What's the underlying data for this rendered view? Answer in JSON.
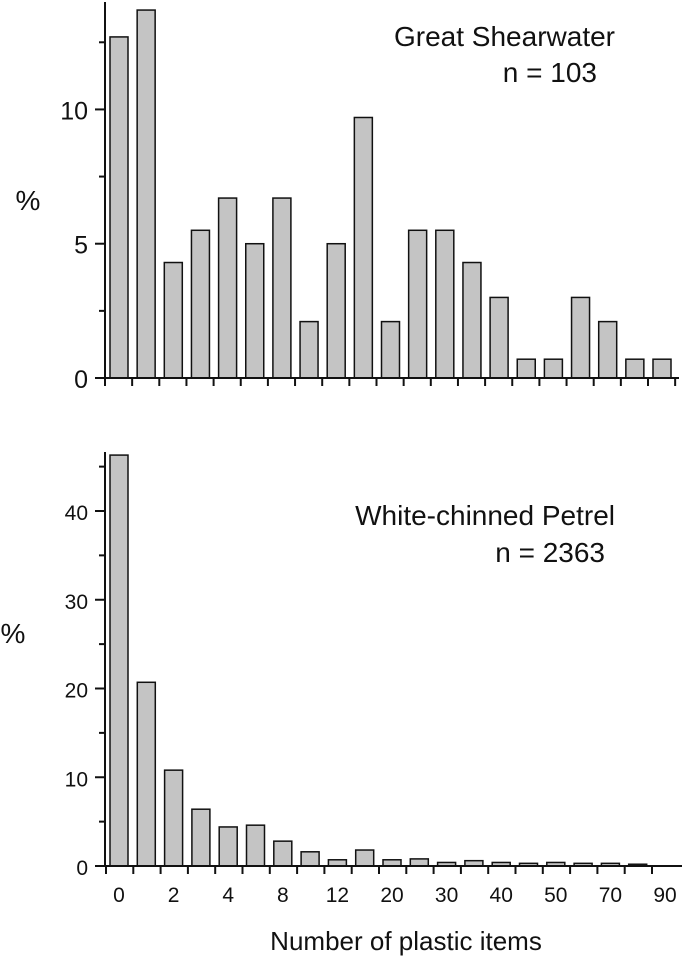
{
  "chart_data": [
    {
      "type": "bar",
      "title": "Great Shearwater",
      "subtitle": "n = 103",
      "xlabel": "",
      "ylabel": "%",
      "ylim": [
        0,
        14
      ],
      "yticks": [
        0,
        5,
        10
      ],
      "bar_color": "#c4c4c4",
      "x_tick_labels": [],
      "values": [
        12.7,
        13.7,
        4.3,
        5.5,
        6.7,
        5.0,
        6.7,
        2.1,
        5.0,
        9.7,
        2.1,
        5.5,
        5.5,
        4.3,
        3.0,
        0.7,
        0.7,
        3.0,
        2.1,
        0.7,
        0.7
      ]
    },
    {
      "type": "bar",
      "title": "White-chinned Petrel",
      "subtitle": "n = 2363",
      "xlabel": "Number of plastic items",
      "ylabel": "%",
      "ylim": [
        0,
        47
      ],
      "yticks": [
        0,
        10,
        20,
        30,
        40
      ],
      "bar_color": "#c4c4c4",
      "x_tick_labels": [
        "0",
        "2",
        "4",
        "8",
        "12",
        "20",
        "30",
        "40",
        "50",
        "70",
        "90"
      ],
      "values": [
        46.3,
        20.7,
        10.8,
        6.4,
        4.4,
        4.6,
        2.8,
        1.6,
        0.7,
        1.8,
        0.7,
        0.8,
        0.4,
        0.6,
        0.4,
        0.3,
        0.4,
        0.3,
        0.3,
        0.2
      ]
    }
  ]
}
